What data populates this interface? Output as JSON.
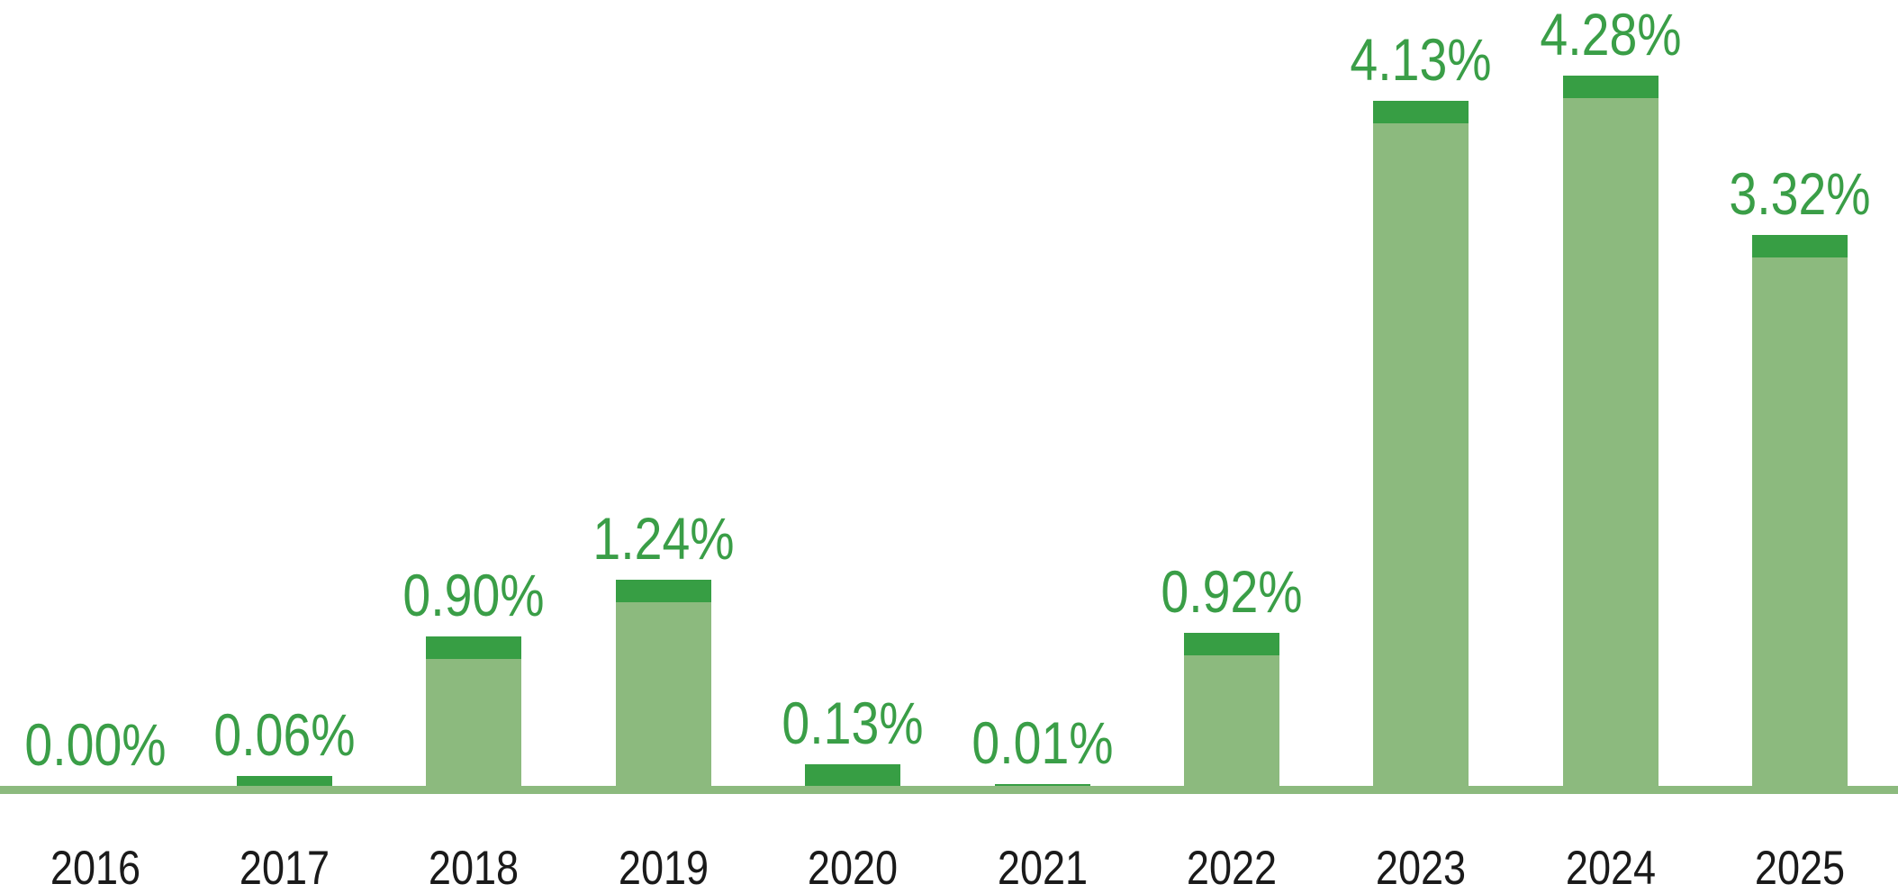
{
  "chart_data": {
    "type": "bar",
    "title": "",
    "xlabel": "",
    "ylabel": "",
    "categories": [
      "2016",
      "2017",
      "2018",
      "2019",
      "2020",
      "2021",
      "2022",
      "2023",
      "2024",
      "2025"
    ],
    "values": [
      0.0,
      0.06,
      0.9,
      1.24,
      0.13,
      0.01,
      0.92,
      4.13,
      4.28,
      3.32
    ],
    "value_labels": [
      "0.00%",
      "0.06%",
      "0.90%",
      "1.24%",
      "0.13%",
      "0.01%",
      "0.92%",
      "4.13%",
      "4.28%",
      "3.32%"
    ],
    "ylim": [
      0,
      4.6
    ],
    "grid": false,
    "legend": false,
    "bar_style": "light body with fixed dark top cap, sitting on full-width baseline band",
    "colors": {
      "bar_fill": "#8CBA7E",
      "bar_cap": "#379E44",
      "value_label": "#3A9E47",
      "category_label": "#1A1A1A",
      "baseline_band": "#8CBA7E",
      "background": "#FFFFFF"
    }
  }
}
